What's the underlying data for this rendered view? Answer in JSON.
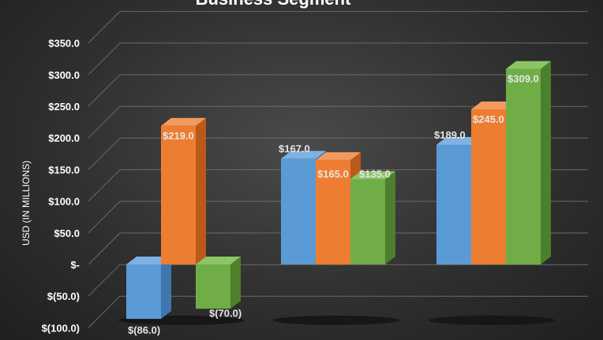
{
  "chart_data": {
    "type": "bar",
    "title": "Business Segment",
    "ylabel": "USD (IN MILLIONS)",
    "xlabel": "",
    "ylim": [
      -100,
      350
    ],
    "yticks": [
      350,
      300,
      250,
      200,
      150,
      100,
      50,
      0,
      -50,
      -100
    ],
    "ytick_labels": [
      "$350.0",
      "$300.0",
      "$250.0",
      "$200.0",
      "$150.0",
      "$100.0",
      "$50.0",
      "$-",
      "$(50.0)",
      "$(100.0)"
    ],
    "grid": true,
    "three_d": true,
    "groups": [
      [
        {
          "value": -86,
          "label": "$(86.0)",
          "color": "blue"
        },
        {
          "value": 219,
          "label": "$219.0",
          "color": "orange"
        },
        {
          "value": -70,
          "label": "$(70.0)",
          "color": "green"
        }
      ],
      [
        {
          "value": 167,
          "label": "$167.0",
          "color": "blue"
        },
        {
          "value": 165,
          "label": "$165.0",
          "color": "orange"
        },
        {
          "value": 135,
          "label": "$135.0",
          "color": "green"
        }
      ],
      [
        {
          "value": 189,
          "label": "$189.0",
          "color": "blue"
        },
        {
          "value": 245,
          "label": "$245.0",
          "color": "orange"
        },
        {
          "value": 309,
          "label": "$309.0",
          "color": "green"
        }
      ]
    ],
    "colors": {
      "blue": {
        "front": "#5b9bd5",
        "top": "#7fb2e3",
        "side": "#3f76ad"
      },
      "orange": {
        "front": "#ed7d31",
        "top": "#f29a5e",
        "side": "#b95a1a"
      },
      "green": {
        "front": "#70ad47",
        "top": "#8cc466",
        "side": "#4d7f2c"
      },
      "grid": "#6a6a6a",
      "text": "#ffffff"
    }
  }
}
